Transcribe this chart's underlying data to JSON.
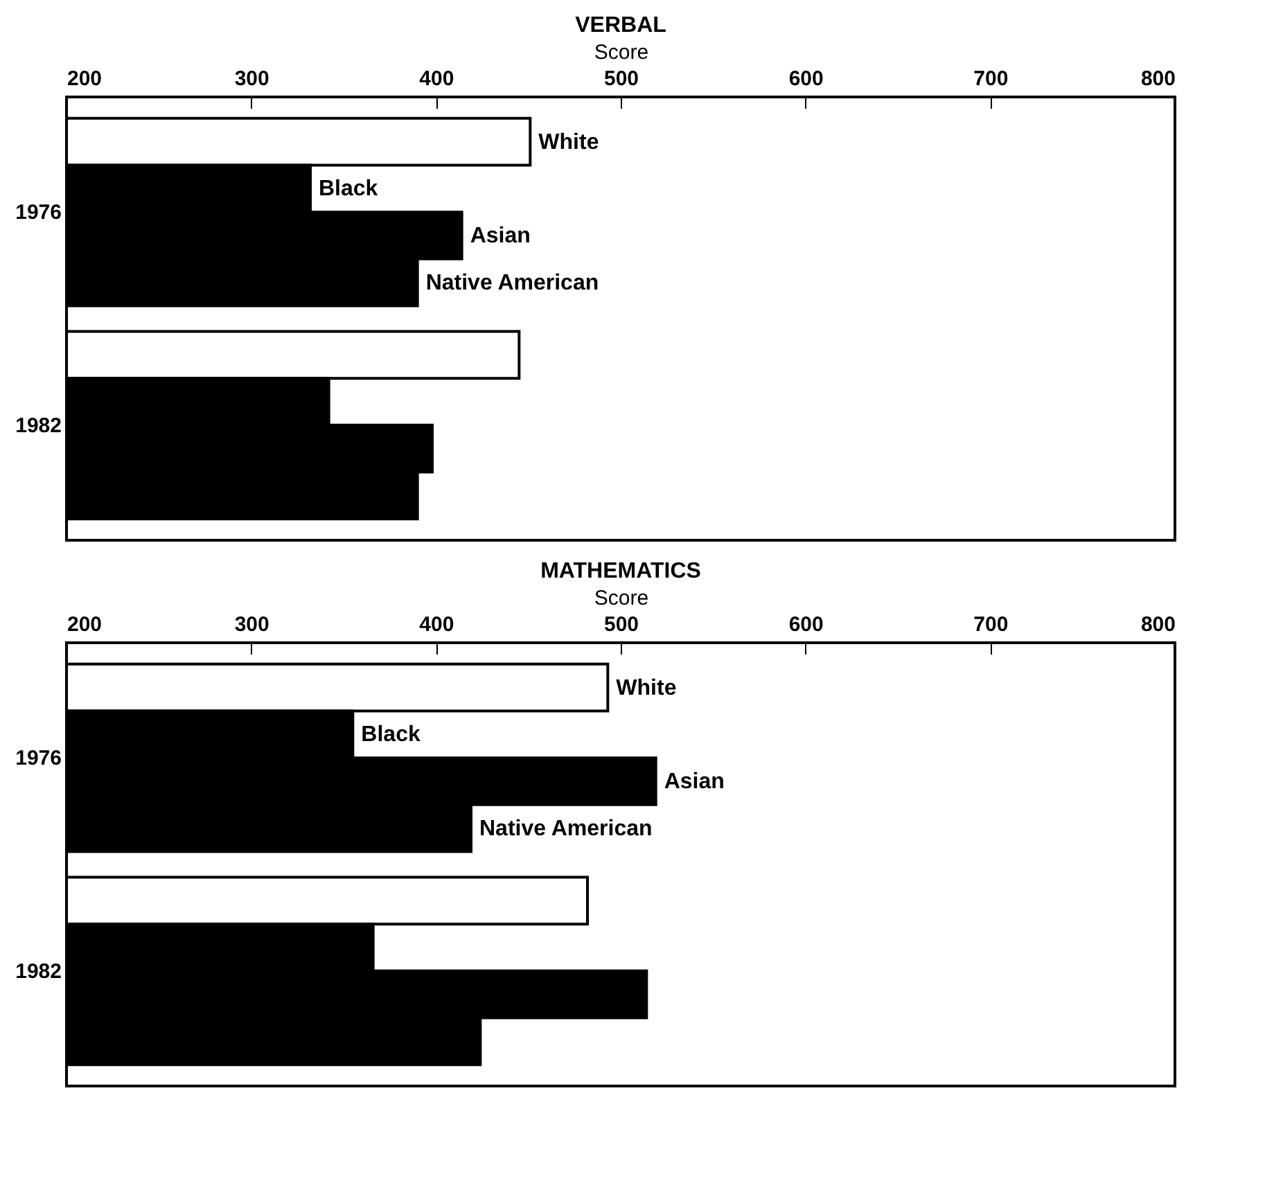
{
  "chart_data": [
    {
      "type": "bar",
      "title": "VERBAL",
      "xlabel": "Score",
      "orientation": "horizontal",
      "categories": [
        "1976",
        "1982"
      ],
      "xlim": [
        200,
        800
      ],
      "xticks": [
        200,
        300,
        400,
        500,
        600,
        700,
        800
      ],
      "grid": false,
      "legend": false,
      "series": [
        {
          "name": "White",
          "color": "#ffffff",
          "values": [
            451,
            445
          ]
        },
        {
          "name": "Black",
          "color": "#000000",
          "values": [
            332,
            342
          ]
        },
        {
          "name": "Asian",
          "color": "#000000",
          "values": [
            414,
            398
          ]
        },
        {
          "name": "Native American",
          "color": "#000000",
          "values": [
            390,
            390
          ]
        }
      ]
    },
    {
      "type": "bar",
      "title": "MATHEMATICS",
      "xlabel": "Score",
      "orientation": "horizontal",
      "categories": [
        "1976",
        "1982"
      ],
      "xlim": [
        200,
        800
      ],
      "xticks": [
        200,
        300,
        400,
        500,
        600,
        700,
        800
      ],
      "grid": false,
      "legend": false,
      "series": [
        {
          "name": "White",
          "color": "#ffffff",
          "values": [
            493,
            482
          ]
        },
        {
          "name": "Black",
          "color": "#000000",
          "values": [
            355,
            366
          ]
        },
        {
          "name": "Asian",
          "color": "#000000",
          "values": [
            519,
            514
          ]
        },
        {
          "name": "Native American",
          "color": "#000000",
          "values": [
            419,
            424
          ]
        }
      ]
    }
  ]
}
